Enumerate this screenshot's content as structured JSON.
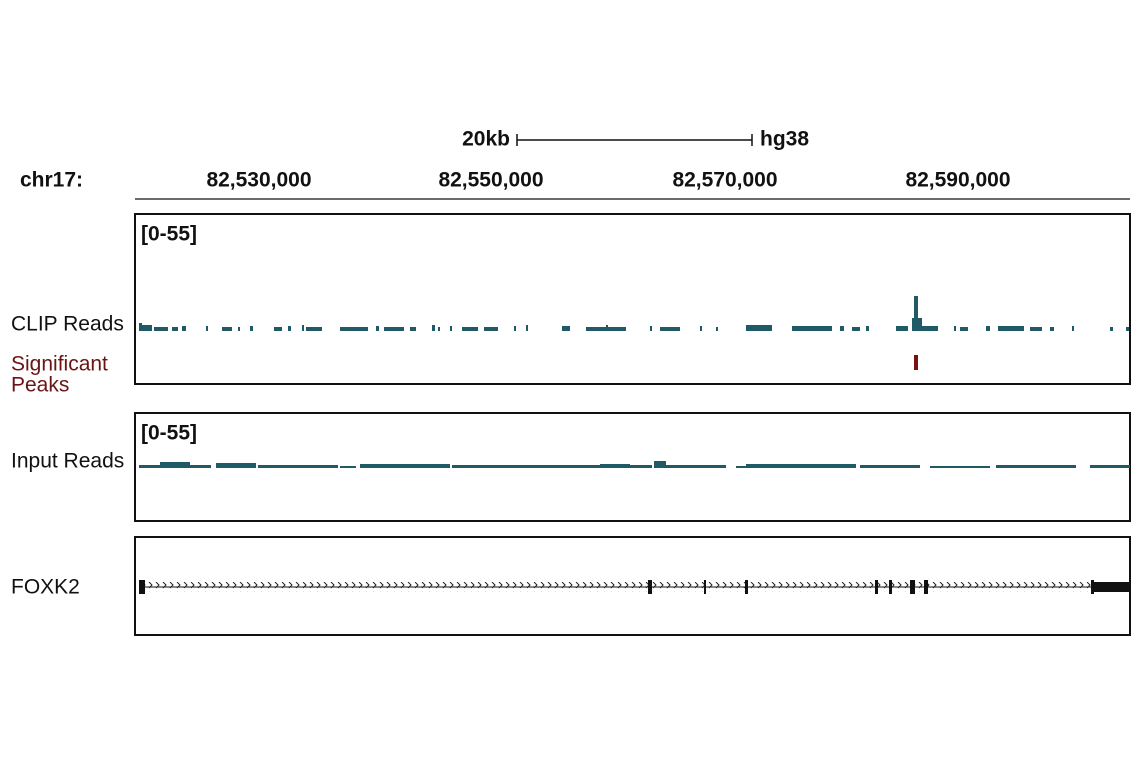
{
  "scale": {
    "length": "20kb",
    "assembly": "hg38"
  },
  "ruler": {
    "chromosome": "chr17:",
    "ticks": [
      "82,530,000",
      "82,550,000",
      "82,570,000",
      "82,590,000"
    ]
  },
  "tracks": [
    {
      "range": "[0-55]",
      "label": "CLIP Reads"
    },
    {
      "label_lines": [
        "Significant",
        "Peaks"
      ]
    },
    {
      "range": "[0-55]",
      "label": "Input Reads"
    },
    {
      "label": "FOXK2"
    }
  ]
}
